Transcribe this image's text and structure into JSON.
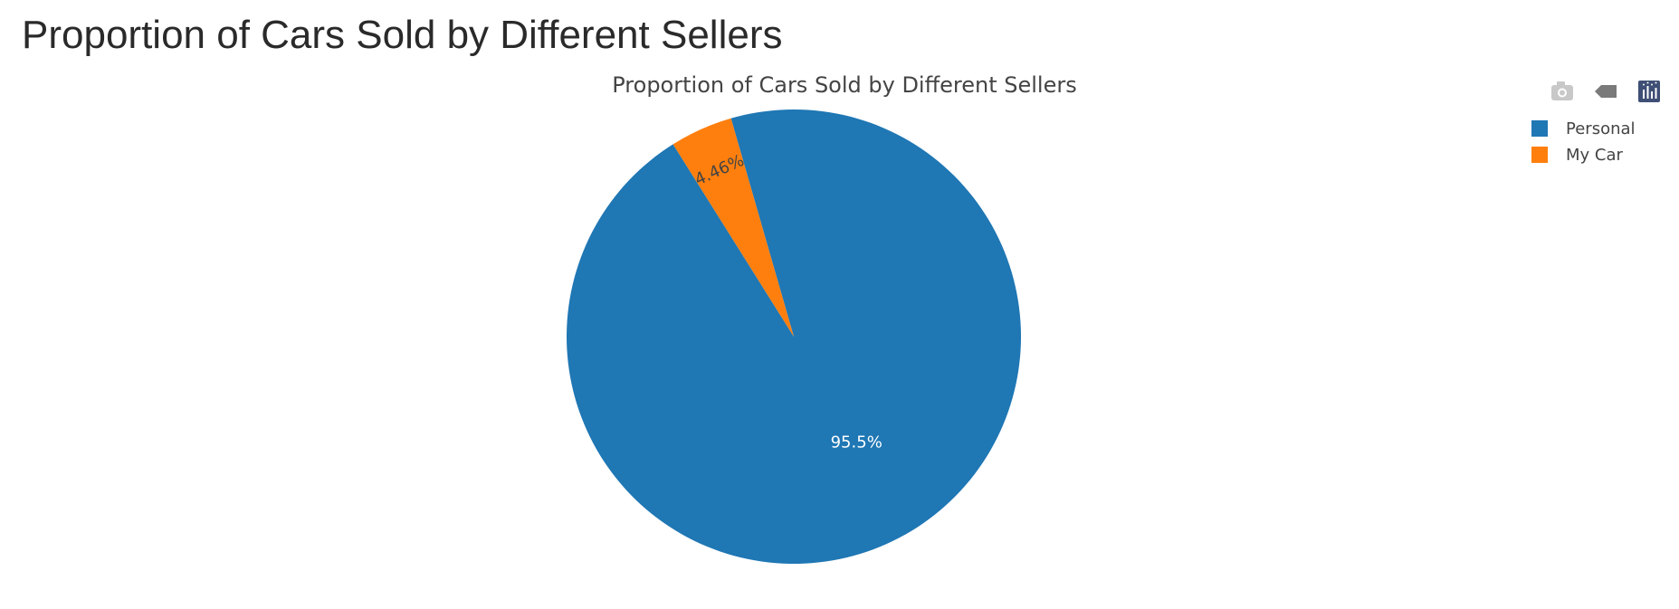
{
  "page": {
    "heading": "Proportion of Cars Sold by Different Sellers"
  },
  "modebar": {
    "buttons": [
      {
        "icon": "camera-icon"
      },
      {
        "icon": "tag-icon"
      },
      {
        "icon": "bar-chart-logo-icon"
      }
    ],
    "colors": {
      "inactive": "#c8c8c8",
      "active": "#7a7a7a",
      "logo_bg": "#3f4f75"
    }
  },
  "chart_data": {
    "type": "pie",
    "title": "Proportion of Cars Sold by Different Sellers",
    "labels": [
      "Personal",
      "My Car"
    ],
    "values": [
      95.54,
      4.46
    ],
    "text_labels": [
      "95.5%",
      "4.46%"
    ],
    "colors": [
      "#1f77b4",
      "#ff7f0e"
    ],
    "label_colors": [
      "#ffffff",
      "#444444"
    ],
    "direction": "clockwise",
    "legend_position": "top-right"
  }
}
